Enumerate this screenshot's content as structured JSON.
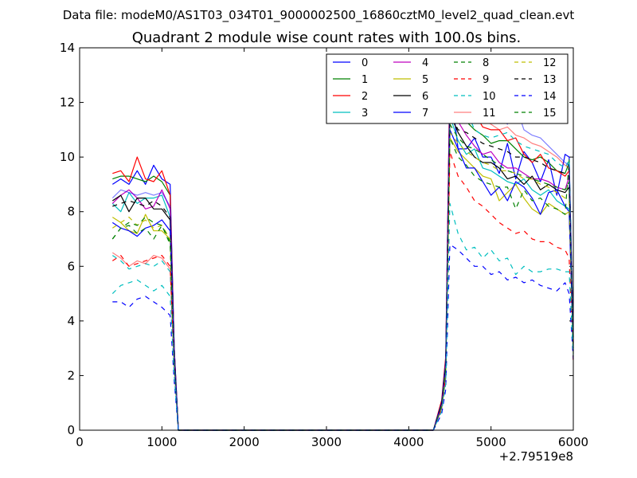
{
  "chart_data": {
    "type": "line",
    "suptitle": "Data file: modeM0/AS1T03_034T01_9000002500_16860cztM0_level2_quad_clean.evt",
    "title": "Quadrant 2 module wise count rates with 100.0s bins.",
    "xlabel": "",
    "ylabel": "",
    "x_offset_label": "+2.79519e8",
    "xlim": [
      0,
      6000
    ],
    "ylim": [
      0,
      14
    ],
    "xticks": [
      0,
      1000,
      2000,
      3000,
      4000,
      5000,
      6000
    ],
    "yticks": [
      0,
      2,
      4,
      6,
      8,
      10,
      12,
      14
    ],
    "legend_location": "upper right",
    "legend_columns": 4,
    "x": [
      400,
      500,
      600,
      700,
      800,
      900,
      1000,
      1100,
      1150,
      1200,
      1300,
      1400,
      1500,
      1600,
      1700,
      1800,
      1900,
      2000,
      2100,
      2200,
      2300,
      2400,
      2500,
      2600,
      2700,
      2800,
      2900,
      3000,
      3100,
      3200,
      3300,
      3400,
      3500,
      3600,
      3700,
      3800,
      3900,
      4000,
      4100,
      4200,
      4300,
      4400,
      4450,
      4500,
      4600,
      4700,
      4800,
      4900,
      5000,
      5100,
      5200,
      5300,
      5400,
      5500,
      5600,
      5700,
      5800,
      5900,
      5950,
      6000
    ],
    "series": [
      {
        "name": "0",
        "color": "#0000ff",
        "dash": "solid",
        "opacity": 1.0,
        "values": [
          9.0,
          9.2,
          9.0,
          9.5,
          9.0,
          9.7,
          9.2,
          9.0,
          3.0,
          0,
          0,
          0,
          0,
          0,
          0,
          0,
          0,
          0,
          0,
          0,
          0,
          0,
          0,
          0,
          0,
          0,
          0,
          0,
          0,
          0,
          0,
          0,
          0,
          0,
          0,
          0,
          0,
          0,
          0,
          0,
          0,
          1.0,
          2.5,
          12.8,
          10.3,
          10.3,
          10.7,
          10.0,
          10.0,
          9.4,
          10.5,
          9.2,
          10.2,
          9.8,
          9.1,
          9.9,
          8.6,
          10.1,
          10.0,
          3.0
        ]
      },
      {
        "name": "1",
        "color": "#008000",
        "dash": "solid",
        "opacity": 1.0,
        "values": [
          9.2,
          9.3,
          9.3,
          9.2,
          9.1,
          9.3,
          9.1,
          8.6,
          3.0,
          0,
          0,
          0,
          0,
          0,
          0,
          0,
          0,
          0,
          0,
          0,
          0,
          0,
          0,
          0,
          0,
          0,
          0,
          0,
          0,
          0,
          0,
          0,
          0,
          0,
          0,
          0,
          0,
          0,
          0,
          0,
          0,
          1.0,
          2.6,
          12.0,
          11.3,
          11.3,
          11.0,
          10.8,
          10.5,
          10.6,
          10.6,
          10.3,
          10.0,
          9.9,
          10.0,
          9.8,
          9.5,
          9.4,
          9.8,
          3.4
        ]
      },
      {
        "name": "2",
        "color": "#ff0000",
        "dash": "solid",
        "opacity": 1.0,
        "values": [
          9.4,
          9.5,
          9.1,
          10.0,
          9.2,
          9.1,
          9.5,
          8.6,
          3.0,
          0,
          0,
          0,
          0,
          0,
          0,
          0,
          0,
          0,
          0,
          0,
          0,
          0,
          0,
          0,
          0,
          0,
          0,
          0,
          0,
          0,
          0,
          0,
          0,
          0,
          0,
          0,
          0,
          0,
          0,
          0,
          0,
          1.1,
          2.7,
          13.1,
          11.7,
          11.4,
          11.6,
          11.1,
          11.0,
          11.0,
          10.6,
          10.7,
          10.1,
          9.8,
          10.1,
          9.6,
          9.5,
          9.3,
          9.5,
          3.3
        ]
      },
      {
        "name": "3",
        "color": "#00bfbf",
        "dash": "solid",
        "opacity": 1.0,
        "values": [
          8.3,
          8.0,
          8.7,
          8.3,
          8.5,
          8.5,
          8.6,
          7.8,
          2.8,
          0,
          0,
          0,
          0,
          0,
          0,
          0,
          0,
          0,
          0,
          0,
          0,
          0,
          0,
          0,
          0,
          0,
          0,
          0,
          0,
          0,
          0,
          0,
          0,
          0,
          0,
          0,
          0,
          0,
          0,
          0,
          0,
          0.9,
          2.3,
          11.5,
          10.6,
          10.1,
          10.3,
          9.6,
          9.5,
          9.3,
          9.1,
          9.0,
          9.2,
          8.8,
          8.6,
          8.8,
          8.4,
          8.2,
          8.1,
          3.0
        ]
      },
      {
        "name": "4",
        "color": "#bf00bf",
        "dash": "solid",
        "opacity": 1.0,
        "values": [
          8.3,
          8.6,
          8.8,
          8.5,
          8.1,
          8.2,
          8.8,
          8.1,
          2.9,
          0,
          0,
          0,
          0,
          0,
          0,
          0,
          0,
          0,
          0,
          0,
          0,
          0,
          0,
          0,
          0,
          0,
          0,
          0,
          0,
          0,
          0,
          0,
          0,
          0,
          0,
          0,
          0,
          0,
          0,
          0,
          0,
          1.0,
          2.4,
          11.8,
          11.3,
          10.8,
          10.4,
          10.1,
          10.2,
          9.8,
          9.6,
          9.6,
          9.4,
          9.2,
          9.2,
          9.1,
          8.9,
          8.8,
          9.3,
          3.2
        ]
      },
      {
        "name": "5",
        "color": "#bfbf00",
        "dash": "solid",
        "opacity": 1.0,
        "values": [
          7.8,
          7.6,
          7.3,
          7.2,
          7.9,
          7.3,
          7.3,
          7.0,
          2.7,
          0,
          0,
          0,
          0,
          0,
          0,
          0,
          0,
          0,
          0,
          0,
          0,
          0,
          0,
          0,
          0,
          0,
          0,
          0,
          0,
          0,
          0,
          0,
          0,
          0,
          0,
          0,
          0,
          0,
          0,
          0,
          0,
          0.9,
          2.2,
          10.7,
          10.2,
          9.9,
          9.6,
          9.3,
          9.2,
          8.4,
          8.7,
          9.0,
          8.5,
          8.1,
          7.9,
          8.3,
          8.1,
          7.9,
          8.0,
          2.9
        ]
      },
      {
        "name": "6",
        "color": "#000000",
        "dash": "solid",
        "opacity": 1.0,
        "values": [
          8.4,
          8.6,
          8.0,
          8.5,
          8.5,
          8.1,
          8.1,
          7.7,
          2.8,
          0,
          0,
          0,
          0,
          0,
          0,
          0,
          0,
          0,
          0,
          0,
          0,
          0,
          0,
          0,
          0,
          0,
          0,
          0,
          0,
          0,
          0,
          0,
          0,
          0,
          0,
          0,
          0,
          0,
          0,
          0,
          0,
          1.0,
          2.4,
          11.6,
          10.9,
          10.4,
          10.0,
          9.8,
          9.8,
          9.6,
          9.2,
          9.3,
          9.0,
          9.3,
          8.8,
          9.0,
          8.8,
          8.7,
          8.9,
          3.1
        ]
      },
      {
        "name": "7",
        "color": "#0000ff",
        "dash": "solid",
        "opacity": 1.0,
        "values": [
          7.6,
          7.4,
          7.3,
          7.1,
          7.4,
          7.5,
          7.7,
          7.3,
          2.7,
          0,
          0,
          0,
          0,
          0,
          0,
          0,
          0,
          0,
          0,
          0,
          0,
          0,
          0,
          0,
          0,
          0,
          0,
          0,
          0,
          0,
          0,
          0,
          0,
          0,
          0,
          0,
          0,
          0,
          0,
          0,
          0,
          0.9,
          2.2,
          11.0,
          10.3,
          9.6,
          9.6,
          9.1,
          8.6,
          8.9,
          8.4,
          9.1,
          8.9,
          8.5,
          7.9,
          8.7,
          8.8,
          8.2,
          8.0,
          2.9
        ]
      },
      {
        "name": "8",
        "color": "#008000",
        "dash": "dashed",
        "opacity": 1.0,
        "values": [
          7.0,
          7.4,
          7.5,
          7.2,
          7.4,
          7.0,
          7.5,
          6.8,
          2.6,
          0,
          0,
          0,
          0,
          0,
          0,
          0,
          0,
          0,
          0,
          0,
          0,
          0,
          0,
          0,
          0,
          0,
          0,
          0,
          0,
          0,
          0,
          0,
          0,
          0,
          0,
          0,
          0,
          0,
          0,
          0,
          0,
          0.9,
          2.3,
          10.7,
          10.0,
          9.7,
          9.3,
          9.1,
          9.0,
          8.9,
          8.9,
          8.1,
          8.8,
          8.4,
          8.5,
          8.2,
          8.1,
          7.9,
          9.9,
          2.8
        ]
      },
      {
        "name": "9",
        "color": "#ff0000",
        "dash": "dashed",
        "opacity": 1.0,
        "values": [
          6.2,
          6.4,
          6.0,
          6.1,
          6.2,
          6.3,
          6.4,
          6.0,
          2.4,
          0,
          0,
          0,
          0,
          0,
          0,
          0,
          0,
          0,
          0,
          0,
          0,
          0,
          0,
          0,
          0,
          0,
          0,
          0,
          0,
          0,
          0,
          0,
          0,
          0,
          0,
          0,
          0,
          0,
          0,
          0,
          0,
          0.8,
          2.0,
          10.2,
          9.3,
          8.9,
          8.4,
          8.2,
          7.9,
          7.6,
          7.4,
          7.2,
          7.3,
          7.0,
          6.9,
          6.9,
          6.7,
          6.6,
          6.3,
          2.5
        ]
      },
      {
        "name": "10",
        "color": "#00bfbf",
        "dash": "dashed",
        "opacity": 1.0,
        "values": [
          6.4,
          6.2,
          5.9,
          6.0,
          6.1,
          6.0,
          6.2,
          5.8,
          2.3,
          0,
          0,
          0,
          0,
          0,
          0,
          0,
          0,
          0,
          0,
          0,
          0,
          0,
          0,
          0,
          0,
          0,
          0,
          0,
          0,
          0,
          0,
          0,
          0,
          0,
          0,
          0,
          0,
          0,
          0,
          0,
          0,
          0.8,
          1.9,
          12.2,
          11.6,
          11.7,
          11.0,
          10.8,
          10.7,
          10.8,
          10.9,
          10.6,
          10.4,
          10.3,
          10.2,
          10.1,
          9.8,
          9.6,
          9.9,
          3.5
        ]
      },
      {
        "name": "11",
        "color": "#ff0000",
        "dash": "solid",
        "opacity": 0.5,
        "values": [
          6.5,
          6.3,
          6.0,
          6.2,
          6.1,
          6.4,
          6.3,
          5.9,
          2.3,
          0,
          0,
          0,
          0,
          0,
          0,
          0,
          0,
          0,
          0,
          0,
          0,
          0,
          0,
          0,
          0,
          0,
          0,
          0,
          0,
          0,
          0,
          0,
          0,
          0,
          0,
          0,
          0,
          0,
          0,
          0,
          0,
          0.8,
          2.0,
          13.2,
          12.4,
          11.7,
          11.3,
          11.4,
          11.2,
          11.0,
          11.1,
          10.8,
          10.7,
          10.5,
          10.4,
          10.2,
          10.0,
          9.7,
          9.6,
          3.4
        ]
      },
      {
        "name": "12",
        "color": "#bfbf00",
        "dash": "dashed",
        "opacity": 1.0,
        "values": [
          7.4,
          7.6,
          7.8,
          7.5,
          7.7,
          7.4,
          7.5,
          7.0,
          2.6,
          0,
          0,
          0,
          0,
          0,
          0,
          0,
          0,
          0,
          0,
          0,
          0,
          0,
          0,
          0,
          0,
          0,
          0,
          0,
          0,
          0,
          0,
          0,
          0,
          0,
          0,
          0,
          0,
          0,
          0,
          0,
          0,
          0.9,
          2.2,
          10.9,
          10.5,
          10.2,
          10.0,
          9.8,
          9.7,
          9.5,
          9.5,
          9.4,
          9.2,
          9.2,
          9.0,
          8.9,
          8.7,
          8.5,
          8.4,
          3.0
        ]
      },
      {
        "name": "13",
        "color": "#000000",
        "dash": "dashed",
        "opacity": 1.0,
        "values": [
          8.2,
          8.3,
          8.4,
          8.3,
          8.2,
          8.4,
          8.2,
          7.8,
          2.8,
          0,
          0,
          0,
          0,
          0,
          0,
          0,
          0,
          0,
          0,
          0,
          0,
          0,
          0,
          0,
          0,
          0,
          0,
          0,
          0,
          0,
          0,
          0,
          0,
          0,
          0,
          0,
          0,
          0,
          0,
          0,
          0,
          1.0,
          2.5,
          11.6,
          11.0,
          10.9,
          10.7,
          10.5,
          10.4,
          10.3,
          10.2,
          10.0,
          10.0,
          9.9,
          9.8,
          9.6,
          9.5,
          9.4,
          9.3,
          3.2
        ]
      },
      {
        "name": "14",
        "color": "#0000ff",
        "dash": "dashed",
        "opacity": 1.0,
        "values": [
          4.7,
          4.7,
          4.5,
          4.8,
          4.9,
          4.7,
          4.5,
          4.2,
          1.8,
          0,
          0,
          0,
          0,
          0,
          0,
          0,
          0,
          0,
          0,
          0,
          0,
          0,
          0,
          0,
          0,
          0,
          0,
          0,
          0,
          0,
          0,
          0,
          0,
          0,
          0,
          0,
          0,
          0,
          0,
          0,
          0,
          0.6,
          1.5,
          6.8,
          6.6,
          6.3,
          6.0,
          6.0,
          5.7,
          5.8,
          5.5,
          5.6,
          5.4,
          5.5,
          5.3,
          5.2,
          5.1,
          5.4,
          5.0,
          2.6
        ]
      },
      {
        "name": "15",
        "color": "#008000",
        "dash": "dashed",
        "opacity": 1.0,
        "values": [
          7.0,
          7.4,
          7.6,
          7.5,
          7.8,
          7.6,
          7.5,
          6.9,
          2.6,
          0,
          0,
          0,
          0,
          0,
          0,
          0,
          0,
          0,
          0,
          0,
          0,
          0,
          0,
          0,
          0,
          0,
          0,
          0,
          0,
          0,
          0,
          0,
          0,
          0,
          0,
          0,
          0,
          0,
          0,
          0,
          0,
          0.9,
          2.3,
          11.2,
          10.7,
          10.4,
          10.3,
          10.1,
          9.9,
          9.7,
          9.5,
          9.4,
          9.3,
          9.2,
          9.1,
          9.0,
          8.9,
          8.8,
          9.1,
          3.0
        ]
      },
      {
        "name": "",
        "color": "#00bfbf",
        "dash": "dashed",
        "opacity": 1.0,
        "values": [
          5.0,
          5.3,
          5.4,
          5.5,
          5.3,
          5.1,
          5.3,
          4.9,
          2.0,
          0,
          0,
          0,
          0,
          0,
          0,
          0,
          0,
          0,
          0,
          0,
          0,
          0,
          0,
          0,
          0,
          0,
          0,
          0,
          0,
          0,
          0,
          0,
          0,
          0,
          0,
          0,
          0,
          0,
          0,
          0,
          0,
          0.7,
          1.7,
          8.3,
          7.2,
          6.6,
          6.7,
          6.3,
          6.6,
          6.2,
          6.3,
          5.7,
          6.0,
          5.8,
          5.8,
          5.9,
          5.9,
          5.8,
          5.8,
          2.7
        ]
      },
      {
        "name": "",
        "color": "#0000ff",
        "dash": "solid",
        "opacity": 0.5,
        "values": [
          8.5,
          8.8,
          8.7,
          8.6,
          8.7,
          8.6,
          8.7,
          8.2,
          2.9,
          0,
          0,
          0,
          0,
          0,
          0,
          0,
          0,
          0,
          0,
          0,
          0,
          0,
          0,
          0,
          0,
          0,
          0,
          0,
          0,
          0,
          0,
          0,
          0,
          0,
          0,
          0,
          0,
          0,
          0,
          0,
          0,
          1.0,
          2.6,
          13.0,
          12.9,
          12.3,
          12.1,
          12.1,
          11.5,
          11.5,
          11.2,
          11.9,
          11.0,
          10.8,
          10.7,
          10.4,
          10.1,
          9.8,
          9.7,
          3.4
        ]
      }
    ]
  }
}
